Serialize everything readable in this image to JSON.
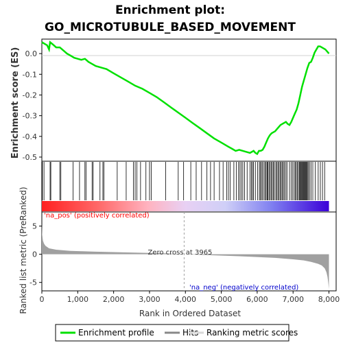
{
  "chart_data": {
    "type": "line",
    "title_line1": "Enrichment plot:",
    "title_line2": "GO_MICROTUBULE_BASED_MOVEMENT",
    "es_ylabel": "Enrichment score (ES)",
    "metric_ylabel": "Ranked list metric (PreRanked)",
    "xlabel": "Rank in Ordered Dataset",
    "xlim": [
      0,
      8200
    ],
    "x_ticks": [
      0,
      1000,
      2000,
      3000,
      4000,
      5000,
      6000,
      7000,
      8000
    ],
    "x_tick_labels": [
      "0",
      "1,000",
      "2,000",
      "3,000",
      "4,000",
      "5,000",
      "6,000",
      "7,000",
      "8,000"
    ],
    "es_ylim": [
      -0.52,
      0.07
    ],
    "es_ticks": [
      0.0,
      -0.1,
      -0.2,
      -0.3,
      -0.4,
      -0.5
    ],
    "es_tick_labels": [
      "0.0",
      "-0.1",
      "-0.2",
      "-0.3",
      "-0.4",
      "-0.5"
    ],
    "metric_ylim": [
      -6.5,
      7.5
    ],
    "metric_ticks": [
      5,
      0,
      -5
    ],
    "metric_tick_labels": [
      "5",
      "0",
      "-5"
    ],
    "zero_cross_rank": 3965,
    "zero_cross_label": "Zero cross at 3965",
    "pos_label": "'na_pos' (positively correlated)",
    "neg_label": "'na_neg' (negatively correlated)",
    "es_curve": {
      "x": [
        0,
        150,
        200,
        230,
        300,
        400,
        500,
        600,
        700,
        800,
        900,
        1000,
        1100,
        1200,
        1300,
        1400,
        1500,
        1600,
        1700,
        1800,
        2000,
        2200,
        2400,
        2600,
        2800,
        3000,
        3200,
        3400,
        3600,
        3800,
        4000,
        4200,
        4400,
        4600,
        4800,
        5000,
        5200,
        5300,
        5400,
        5500,
        5600,
        5700,
        5800,
        5850,
        5900,
        5950,
        6000,
        6050,
        6100,
        6150,
        6200,
        6250,
        6300,
        6350,
        6400,
        6450,
        6500,
        6550,
        6600,
        6650,
        6700,
        6750,
        6800,
        6850,
        6900,
        6950,
        7000,
        7050,
        7100,
        7150,
        7200,
        7250,
        7300,
        7350,
        7400,
        7450,
        7500,
        7550,
        7600,
        7650,
        7700,
        7750,
        7800,
        7850,
        7900,
        7950,
        8000
      ],
      "y": [
        0.055,
        0.04,
        0.02,
        0.055,
        0.045,
        0.03,
        0.03,
        0.015,
        0.0,
        -0.01,
        -0.02,
        -0.025,
        -0.03,
        -0.025,
        -0.04,
        -0.05,
        -0.06,
        -0.065,
        -0.07,
        -0.075,
        -0.095,
        -0.115,
        -0.135,
        -0.155,
        -0.17,
        -0.19,
        -0.21,
        -0.235,
        -0.26,
        -0.285,
        -0.31,
        -0.335,
        -0.36,
        -0.385,
        -0.41,
        -0.43,
        -0.45,
        -0.46,
        -0.47,
        -0.465,
        -0.47,
        -0.475,
        -0.48,
        -0.475,
        -0.47,
        -0.48,
        -0.485,
        -0.47,
        -0.47,
        -0.465,
        -0.45,
        -0.43,
        -0.41,
        -0.395,
        -0.385,
        -0.38,
        -0.375,
        -0.365,
        -0.355,
        -0.345,
        -0.34,
        -0.335,
        -0.33,
        -0.34,
        -0.345,
        -0.33,
        -0.31,
        -0.29,
        -0.27,
        -0.24,
        -0.2,
        -0.16,
        -0.13,
        -0.1,
        -0.07,
        -0.045,
        -0.04,
        -0.02,
        0.005,
        0.02,
        0.035,
        0.035,
        0.03,
        0.025,
        0.02,
        0.01,
        0.0
      ]
    },
    "hits": [
      15,
      60,
      230,
      250,
      500,
      530,
      870,
      1050,
      1200,
      1230,
      1400,
      1430,
      1620,
      1700,
      1730,
      2100,
      2350,
      2550,
      2600,
      2650,
      2750,
      2900,
      3000,
      3050,
      3450,
      3800,
      3950,
      4150,
      4300,
      4450,
      4600,
      4700,
      4800,
      4950,
      5050,
      5150,
      5200,
      5250,
      5350,
      5420,
      5480,
      5520,
      5560,
      5600,
      5650,
      5720,
      5800,
      5840,
      5870,
      5900,
      5950,
      6010,
      6060,
      6090,
      6120,
      6150,
      6190,
      6220,
      6250,
      6280,
      6300,
      6330,
      6360,
      6390,
      6420,
      6450,
      6480,
      6520,
      6550,
      6580,
      6610,
      6640,
      6670,
      6700,
      6730,
      6760,
      6800,
      6830,
      6900,
      6950,
      6990,
      7030,
      7060,
      7090,
      7120,
      7150,
      7180,
      7200,
      7220,
      7240,
      7260,
      7280,
      7300,
      7320,
      7340,
      7360,
      7380,
      7400,
      7430,
      7460,
      7500,
      7550,
      7620,
      7700,
      7760,
      7820,
      7880
    ],
    "metric_profile": {
      "x": [
        0,
        10,
        30,
        60,
        100,
        200,
        400,
        800,
        1500,
        2500,
        3500,
        3965,
        4500,
        5500,
        6500,
        7000,
        7300,
        7500,
        7700,
        7800,
        7880,
        7930,
        7960,
        7980,
        8000
      ],
      "y": [
        5.3,
        3.5,
        2.4,
        1.9,
        1.5,
        1.05,
        0.8,
        0.6,
        0.45,
        0.3,
        0.15,
        0.0,
        -0.12,
        -0.35,
        -0.65,
        -0.9,
        -1.1,
        -1.35,
        -1.7,
        -2.0,
        -2.5,
        -3.2,
        -4.0,
        -5.0,
        -6.2
      ]
    },
    "colors": {
      "es_line": "#00e000",
      "hit_line": "#000000",
      "metric_fill": "#a0a0a0",
      "pos_text": "#ff0000",
      "neg_text": "#0000cc",
      "zero_line": "#a0a0a0"
    },
    "legend": [
      "Enrichment profile",
      "Hits",
      "Ranking metric scores"
    ]
  }
}
